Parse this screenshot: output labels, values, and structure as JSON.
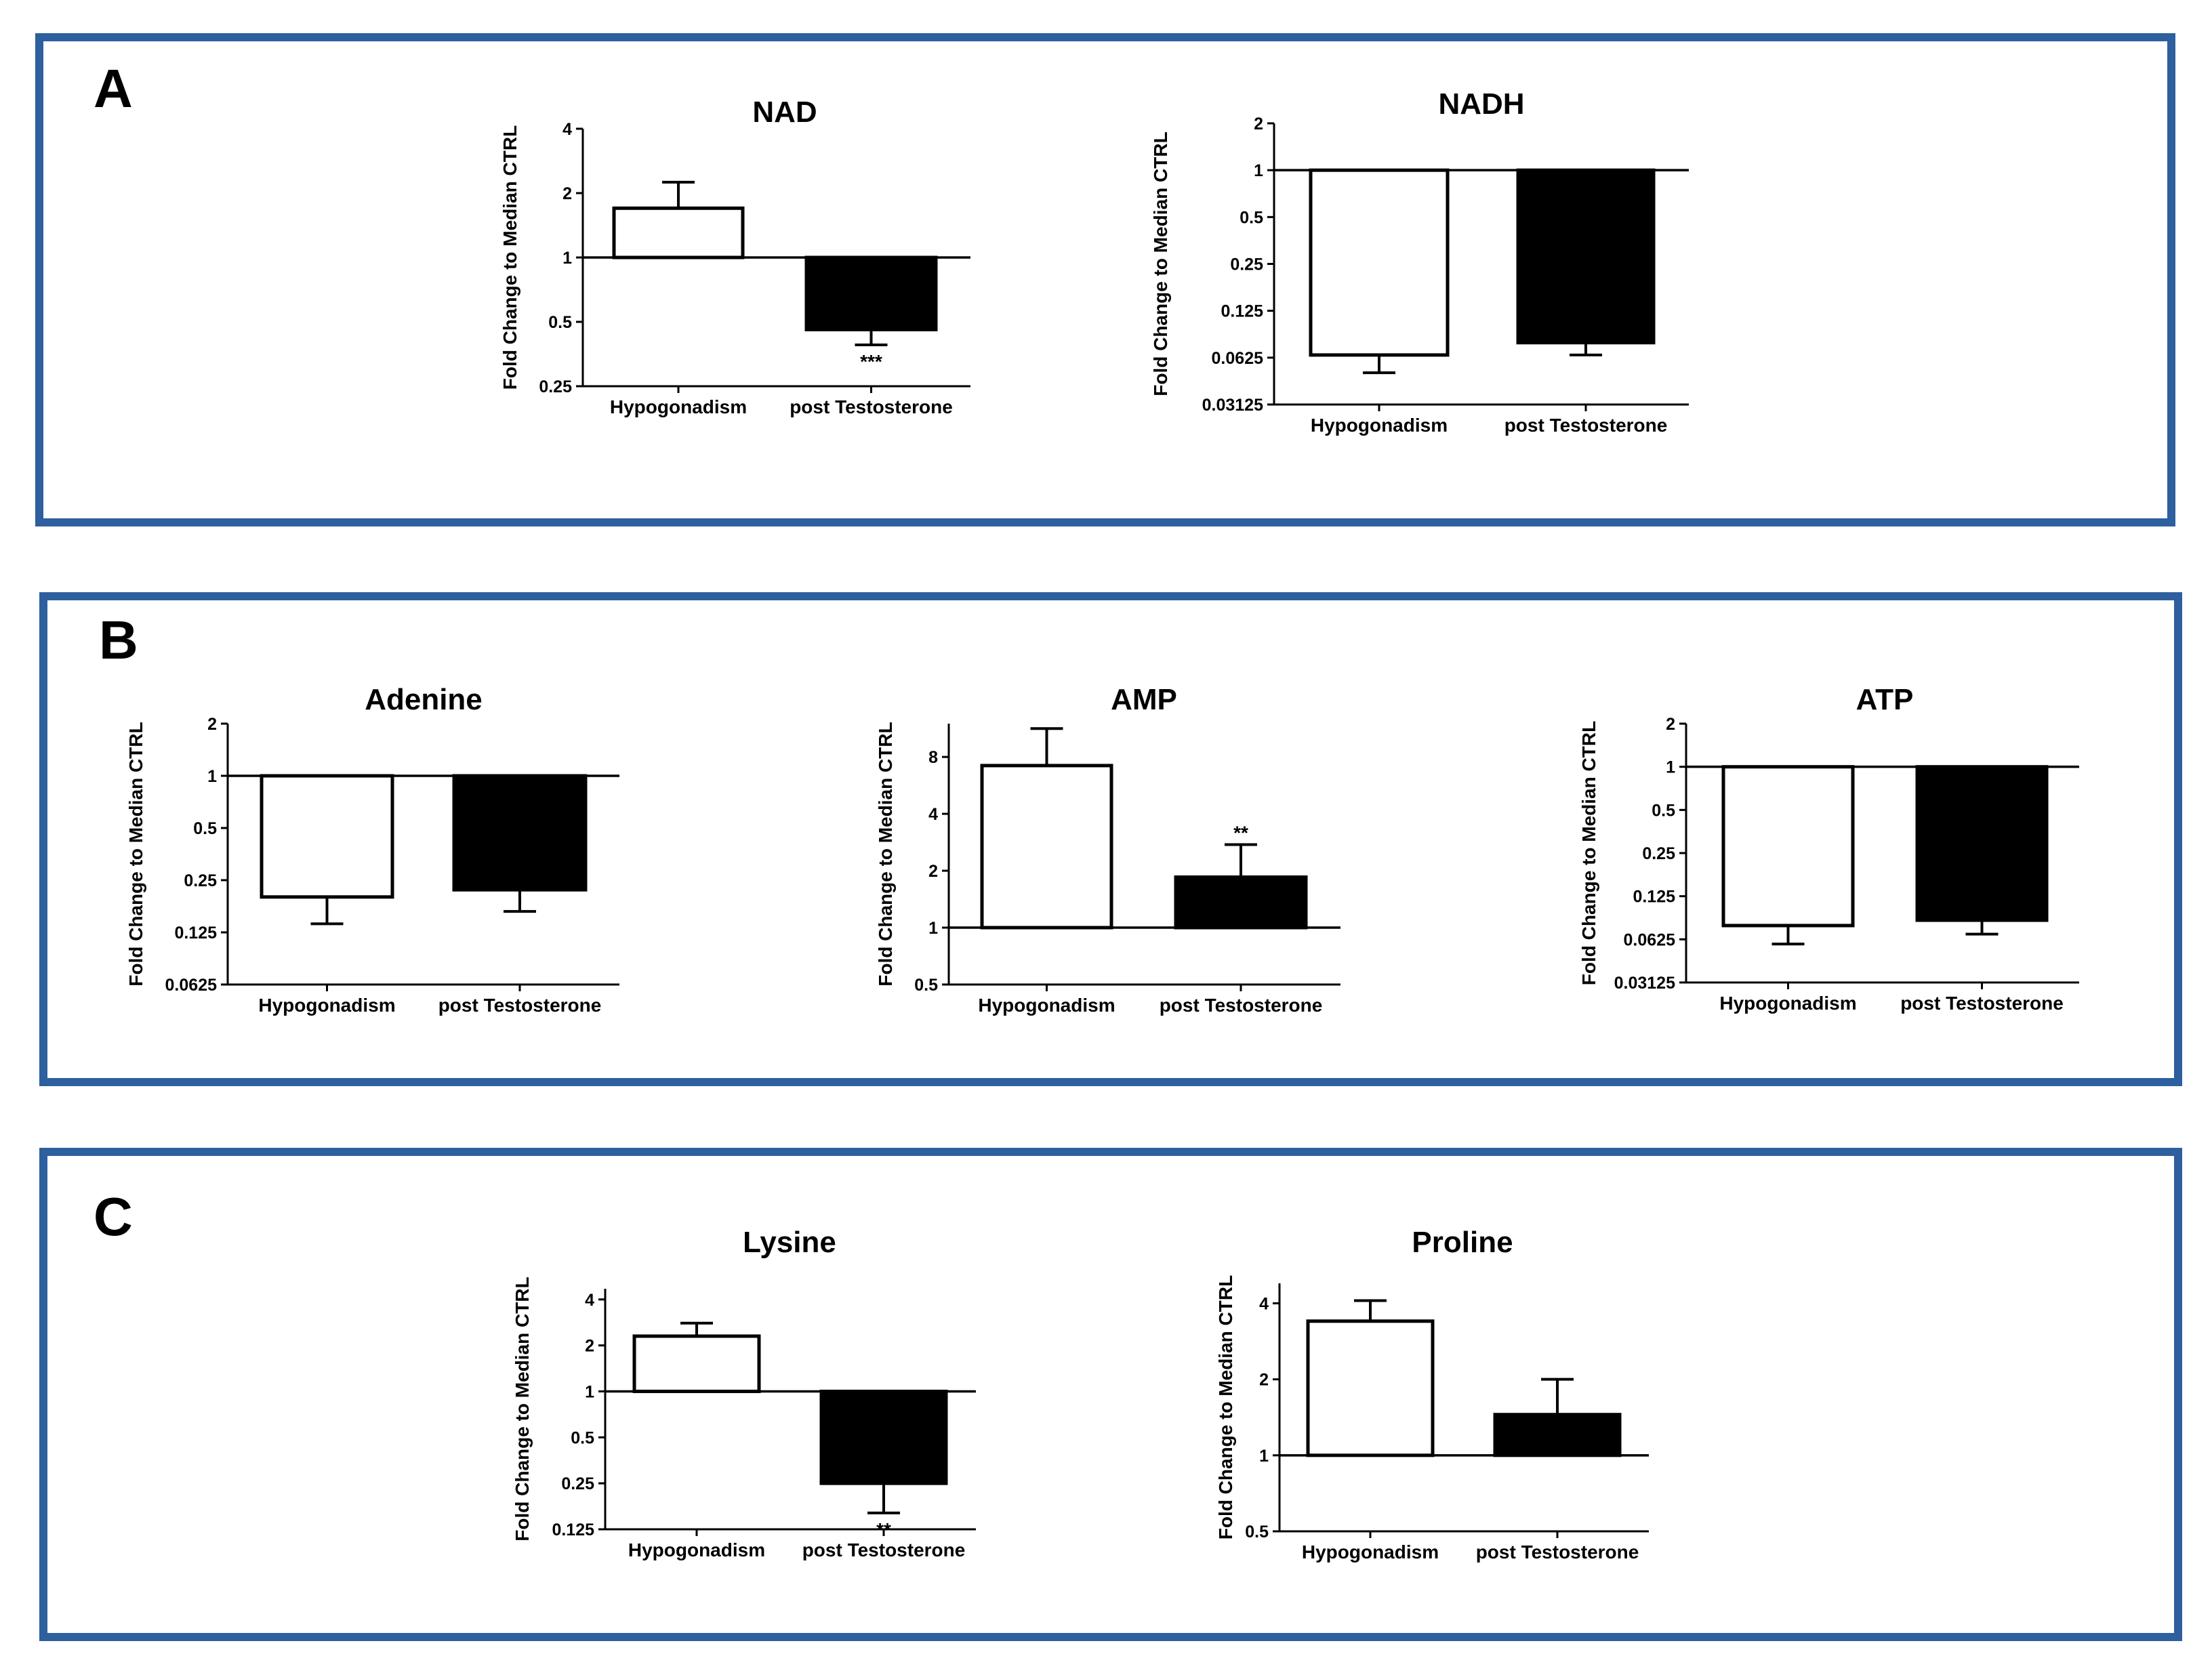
{
  "panels": [
    {
      "label": "A"
    },
    {
      "label": "B"
    },
    {
      "label": "C"
    }
  ],
  "colors": {
    "frame": "#2e5f9e",
    "control_bar": "#ffffff",
    "treated_bar": "#000000"
  },
  "chart_data": [
    {
      "type": "bar",
      "panel": "A",
      "title": "NAD",
      "ylabel": "Fold  Change to  Median CTRL",
      "yscale": "log2",
      "baseline": 1,
      "ylim": [
        0.25,
        4
      ],
      "ticks": [
        {
          "v": 0.25,
          "t": "0.25"
        },
        {
          "v": 0.5,
          "t": "0.5"
        },
        {
          "v": 1,
          "t": "1"
        },
        {
          "v": 2,
          "t": "2"
        },
        {
          "v": 4,
          "t": "4"
        }
      ],
      "categories": [
        "Hypogonadism",
        "post Testosterone"
      ],
      "values": [
        1.7,
        0.46
      ],
      "errors": [
        2.25,
        0.39
      ],
      "fills": [
        "#ffffff",
        "#000000"
      ],
      "significance": [
        "",
        "***"
      ]
    },
    {
      "type": "bar",
      "panel": "A",
      "title": "NADH",
      "ylabel": "Fold  Change to  Median CTRL",
      "yscale": "log2",
      "baseline": 1,
      "ylim": [
        0.03125,
        2
      ],
      "ticks": [
        {
          "v": 0.03125,
          "t": "0.03125"
        },
        {
          "v": 0.0625,
          "t": "0.0625"
        },
        {
          "v": 0.125,
          "t": "0.125"
        },
        {
          "v": 0.25,
          "t": "0.25"
        },
        {
          "v": 0.5,
          "t": "0.5"
        },
        {
          "v": 1,
          "t": "1"
        },
        {
          "v": 2,
          "t": "2"
        }
      ],
      "categories": [
        "Hypogonadism",
        "post Testosterone"
      ],
      "values": [
        0.065,
        0.078
      ],
      "errors": [
        0.05,
        0.065
      ],
      "fills": [
        "#ffffff",
        "#000000"
      ],
      "significance": [
        "",
        ""
      ]
    },
    {
      "type": "bar",
      "panel": "B",
      "title": "Adenine",
      "ylabel": "Fold  Change to  Median CTRL",
      "yscale": "log2",
      "baseline": 1,
      "ylim": [
        0.0625,
        2
      ],
      "ticks": [
        {
          "v": 0.0625,
          "t": "0.0625"
        },
        {
          "v": 0.125,
          "t": "0.125"
        },
        {
          "v": 0.25,
          "t": "0.25"
        },
        {
          "v": 0.5,
          "t": "0.5"
        },
        {
          "v": 1,
          "t": "1"
        },
        {
          "v": 2,
          "t": "2"
        }
      ],
      "categories": [
        "Hypogonadism",
        "post Testosterone"
      ],
      "values": [
        0.2,
        0.22
      ],
      "errors": [
        0.14,
        0.165
      ],
      "fills": [
        "#ffffff",
        "#000000"
      ],
      "significance": [
        "",
        ""
      ]
    },
    {
      "type": "bar",
      "panel": "B",
      "title": "AMP",
      "ylabel": "Fold  Change to  Median CTRL",
      "yscale": "log2",
      "baseline": 1,
      "ylim": [
        0.5,
        12
      ],
      "ticks": [
        {
          "v": 0.5,
          "t": "0.5"
        },
        {
          "v": 1,
          "t": "1"
        },
        {
          "v": 2,
          "t": "2"
        },
        {
          "v": 4,
          "t": "4"
        },
        {
          "v": 8,
          "t": "8"
        }
      ],
      "categories": [
        "Hypogonadism",
        "post Testosterone"
      ],
      "values": [
        7.2,
        1.85
      ],
      "errors": [
        11.3,
        2.75
      ],
      "fills": [
        "#ffffff",
        "#000000"
      ],
      "significance": [
        "",
        "**"
      ]
    },
    {
      "type": "bar",
      "panel": "B",
      "title": "ATP",
      "ylabel": "Fold  Change to  Median CTRL",
      "yscale": "log2",
      "baseline": 1,
      "ylim": [
        0.03125,
        2
      ],
      "ticks": [
        {
          "v": 0.03125,
          "t": "0.03125"
        },
        {
          "v": 0.0625,
          "t": "0.0625"
        },
        {
          "v": 0.125,
          "t": "0.125"
        },
        {
          "v": 0.25,
          "t": "0.25"
        },
        {
          "v": 0.5,
          "t": "0.5"
        },
        {
          "v": 1,
          "t": "1"
        },
        {
          "v": 2,
          "t": "2"
        }
      ],
      "categories": [
        "Hypogonadism",
        "post Testosterone"
      ],
      "values": [
        0.078,
        0.085
      ],
      "errors": [
        0.058,
        0.068
      ],
      "fills": [
        "#ffffff",
        "#000000"
      ],
      "significance": [
        "",
        ""
      ]
    },
    {
      "type": "bar",
      "panel": "C",
      "title": "Lysine",
      "ylabel": "Fold  Change to  Median CTRL",
      "yscale": "log2",
      "baseline": 1,
      "ylim": [
        0.125,
        4.7
      ],
      "ticks": [
        {
          "v": 0.125,
          "t": "0.125"
        },
        {
          "v": 0.25,
          "t": "0.25"
        },
        {
          "v": 0.5,
          "t": "0.5"
        },
        {
          "v": 1,
          "t": "1"
        },
        {
          "v": 2,
          "t": "2"
        },
        {
          "v": 4,
          "t": "4"
        }
      ],
      "categories": [
        "Hypogonadism",
        "post Testosterone"
      ],
      "values": [
        2.3,
        0.25
      ],
      "errors": [
        2.8,
        0.16
      ],
      "fills": [
        "#ffffff",
        "#000000"
      ],
      "significance": [
        "",
        "**"
      ]
    },
    {
      "type": "bar",
      "panel": "C",
      "title": "Proline",
      "ylabel": "Fold  Change to  Median CTRL",
      "yscale": "log2",
      "baseline": 1,
      "ylim": [
        0.5,
        4.8
      ],
      "ticks": [
        {
          "v": 0.5,
          "t": "0.5"
        },
        {
          "v": 1,
          "t": "1"
        },
        {
          "v": 2,
          "t": "2"
        },
        {
          "v": 4,
          "t": "4"
        }
      ],
      "categories": [
        "Hypogonadism",
        "post Testosterone"
      ],
      "values": [
        3.4,
        1.45
      ],
      "errors": [
        4.1,
        2.0
      ],
      "fills": [
        "#ffffff",
        "#000000"
      ],
      "significance": [
        "",
        ""
      ]
    }
  ]
}
